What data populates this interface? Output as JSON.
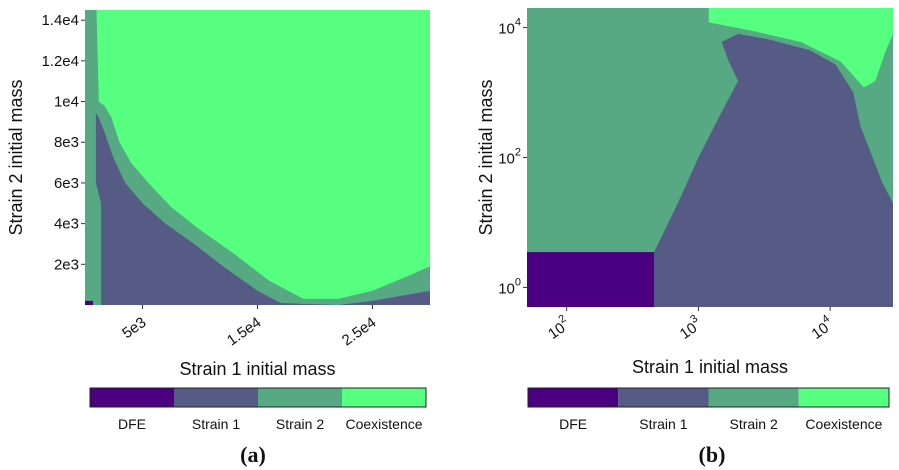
{
  "colors": {
    "DFE": "#4b0082",
    "Strain 1": "#565b86",
    "Strain 2": "#56a983",
    "Coexistence": "#56ff7f"
  },
  "chart_data": [
    {
      "type": "heatmap",
      "caption": "(a)",
      "xlabel": "Strain 1 initial mass",
      "ylabel": "Strain 2 initial mass",
      "xscale": "linear",
      "yscale": "linear",
      "xlim": [
        0,
        30000
      ],
      "ylim": [
        0,
        14500
      ],
      "xticks": [
        {
          "v": 5000,
          "label": "5e3"
        },
        {
          "v": 15000,
          "label": "1.5e4"
        },
        {
          "v": 25000,
          "label": "2.5e4"
        }
      ],
      "yticks": [
        {
          "v": 2000,
          "label": "2e3"
        },
        {
          "v": 4000,
          "label": "4e3"
        },
        {
          "v": 6000,
          "label": "6e3"
        },
        {
          "v": 8000,
          "label": "8e3"
        },
        {
          "v": 10000,
          "label": "1e4"
        },
        {
          "v": 12000,
          "label": "1.2e4"
        },
        {
          "v": 14000,
          "label": "1.4e4"
        }
      ],
      "legend": [
        "DFE",
        "Strain 1",
        "Strain 2",
        "Coexistence"
      ],
      "regions": [
        {
          "class": "Coexistence",
          "points": [
            [
              0,
              0
            ],
            [
              30000,
              0
            ],
            [
              30000,
              14500
            ],
            [
              0,
              14500
            ]
          ]
        },
        {
          "class": "Strain 2",
          "points": [
            [
              0,
              14500
            ],
            [
              1000,
              14500
            ],
            [
              1200,
              10000
            ],
            [
              1700,
              9800
            ],
            [
              2300,
              9200
            ],
            [
              3000,
              8000
            ],
            [
              4000,
              7000
            ],
            [
              5500,
              6000
            ],
            [
              7500,
              4800
            ],
            [
              10000,
              3700
            ],
            [
              13000,
              2500
            ],
            [
              16000,
              1200
            ],
            [
              19000,
              300
            ],
            [
              22000,
              300
            ],
            [
              25000,
              700
            ],
            [
              28000,
              1400
            ],
            [
              30000,
              1900
            ],
            [
              30000,
              0
            ],
            [
              0,
              0
            ]
          ]
        },
        {
          "class": "Strain 1",
          "points": [
            [
              700,
              0
            ],
            [
              700,
              9700
            ],
            [
              1200,
              9200
            ],
            [
              1700,
              8500
            ],
            [
              2500,
              7200
            ],
            [
              3500,
              6000
            ],
            [
              5000,
              5000
            ],
            [
              7000,
              4000
            ],
            [
              9500,
              3000
            ],
            [
              12000,
              1900
            ],
            [
              15000,
              700
            ],
            [
              17000,
              100
            ],
            [
              22000,
              0
            ],
            [
              25000,
              200
            ],
            [
              28000,
              500
            ],
            [
              30000,
              700
            ],
            [
              30000,
              0
            ]
          ]
        },
        {
          "class": "Strain 2",
          "points": [
            [
              0,
              0
            ],
            [
              0,
              14500
            ],
            [
              950,
              14500
            ],
            [
              950,
              6000
            ],
            [
              1400,
              5000
            ],
            [
              1400,
              0
            ]
          ]
        },
        {
          "class": "DFE",
          "points": [
            [
              0,
              0
            ],
            [
              0,
              200
            ],
            [
              700,
              200
            ],
            [
              700,
              0
            ]
          ]
        }
      ]
    },
    {
      "type": "heatmap",
      "caption": "(b)",
      "xlabel": "Strain 1 initial mass",
      "ylabel": "Strain 2 initial mass",
      "xscale": "log",
      "yscale": "log",
      "xlim": [
        50,
        30000
      ],
      "ylim": [
        0.5,
        20000
      ],
      "xticks": [
        {
          "v": 100,
          "base": "10",
          "exp": "2"
        },
        {
          "v": 1000,
          "base": "10",
          "exp": "3"
        },
        {
          "v": 10000,
          "base": "10",
          "exp": "4"
        }
      ],
      "yticks": [
        {
          "v": 1,
          "base": "10",
          "exp": "0"
        },
        {
          "v": 100,
          "base": "10",
          "exp": "2"
        },
        {
          "v": 10000,
          "base": "10",
          "exp": "4"
        }
      ],
      "legend": [
        "DFE",
        "Strain 1",
        "Strain 2",
        "Coexistence"
      ],
      "regions": [
        {
          "class": "Strain 2",
          "points": [
            [
              50,
              0.5
            ],
            [
              30000,
              0.5
            ],
            [
              30000,
              20000
            ],
            [
              50,
              20000
            ]
          ]
        },
        {
          "class": "Coexistence",
          "points": [
            [
              1200,
              20000
            ],
            [
              1200,
              12000
            ],
            [
              2500,
              9000
            ],
            [
              6000,
              6000
            ],
            [
              12000,
              3000
            ],
            [
              18000,
              1200
            ],
            [
              22000,
              1500
            ],
            [
              26000,
              4000
            ],
            [
              30000,
              8000
            ],
            [
              30000,
              20000
            ]
          ]
        },
        {
          "class": "Strain 1",
          "points": [
            [
              460,
              0.5
            ],
            [
              460,
              3.5
            ],
            [
              700,
              20
            ],
            [
              1000,
              100
            ],
            [
              1500,
              500
            ],
            [
              2000,
              1500
            ],
            [
              1700,
              3000
            ],
            [
              1500,
              6000
            ],
            [
              2000,
              8000
            ],
            [
              3500,
              6500
            ],
            [
              7000,
              4500
            ],
            [
              11000,
              2700
            ],
            [
              15000,
              1000
            ],
            [
              17000,
              300
            ],
            [
              20000,
              130
            ],
            [
              25000,
              40
            ],
            [
              30000,
              20
            ],
            [
              30000,
              0.5
            ]
          ]
        },
        {
          "class": "DFE",
          "points": [
            [
              50,
              0.5
            ],
            [
              50,
              3.5
            ],
            [
              460,
              3.5
            ],
            [
              460,
              0.5
            ]
          ]
        }
      ]
    }
  ]
}
